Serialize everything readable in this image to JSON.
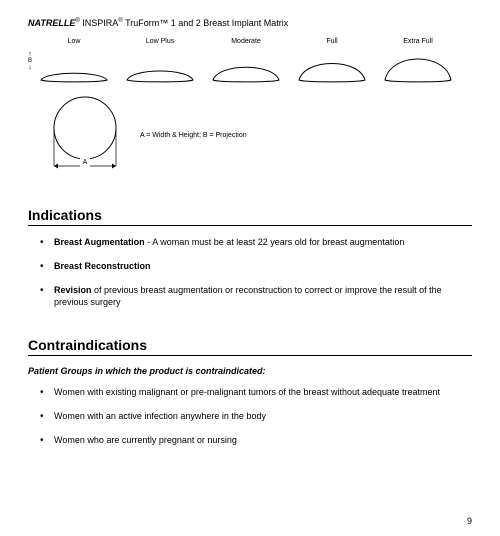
{
  "title": {
    "brand": "NATRELLE",
    "line": "INSPIRA",
    "tech": "TruForm™",
    "rest": "1 and 2 Breast Implant Matrix"
  },
  "axis": {
    "top_arrow": "↑",
    "letter": "B",
    "bottom_arrow": "↓"
  },
  "profiles": [
    {
      "label": "Low",
      "w": 72,
      "h": 18,
      "arc_h": 9
    },
    {
      "label": "Low Plus",
      "w": 72,
      "h": 18,
      "arc_h": 12
    },
    {
      "label": "Moderate",
      "w": 72,
      "h": 22,
      "arc_h": 17
    },
    {
      "label": "Full",
      "w": 72,
      "h": 26,
      "arc_h": 22
    },
    {
      "label": "Extra Full",
      "w": 72,
      "h": 32,
      "arc_h": 28
    }
  ],
  "profile_style": {
    "stroke": "#000000",
    "fill": "none",
    "stroke_width": 1
  },
  "circle": {
    "size": 62,
    "a_label": "A",
    "arrow_left": "←",
    "arrow_right": "→"
  },
  "legend": "A = Width & Height;  B = Projection",
  "sections": {
    "indications": {
      "heading": "Indications",
      "items": [
        {
          "bold": "Breast Augmentation",
          "text": " - A woman must be at least 22 years old for breast augmentation"
        },
        {
          "bold": "Breast Reconstruction",
          "text": ""
        },
        {
          "bold": "Revision",
          "text": " of previous breast augmentation or reconstruction to correct or improve the result of the previous surgery"
        }
      ]
    },
    "contraindications": {
      "heading": "Contraindications",
      "subhead": "Patient Groups in which the product is contraindicated:",
      "items": [
        {
          "text": "Women with existing malignant or pre-malignant tumors of the breast without adequate treatment"
        },
        {
          "text": "Women with an active infection anywhere in the body"
        },
        {
          "text": "Women who are currently pregnant or nursing"
        }
      ]
    }
  },
  "page_number": "9"
}
